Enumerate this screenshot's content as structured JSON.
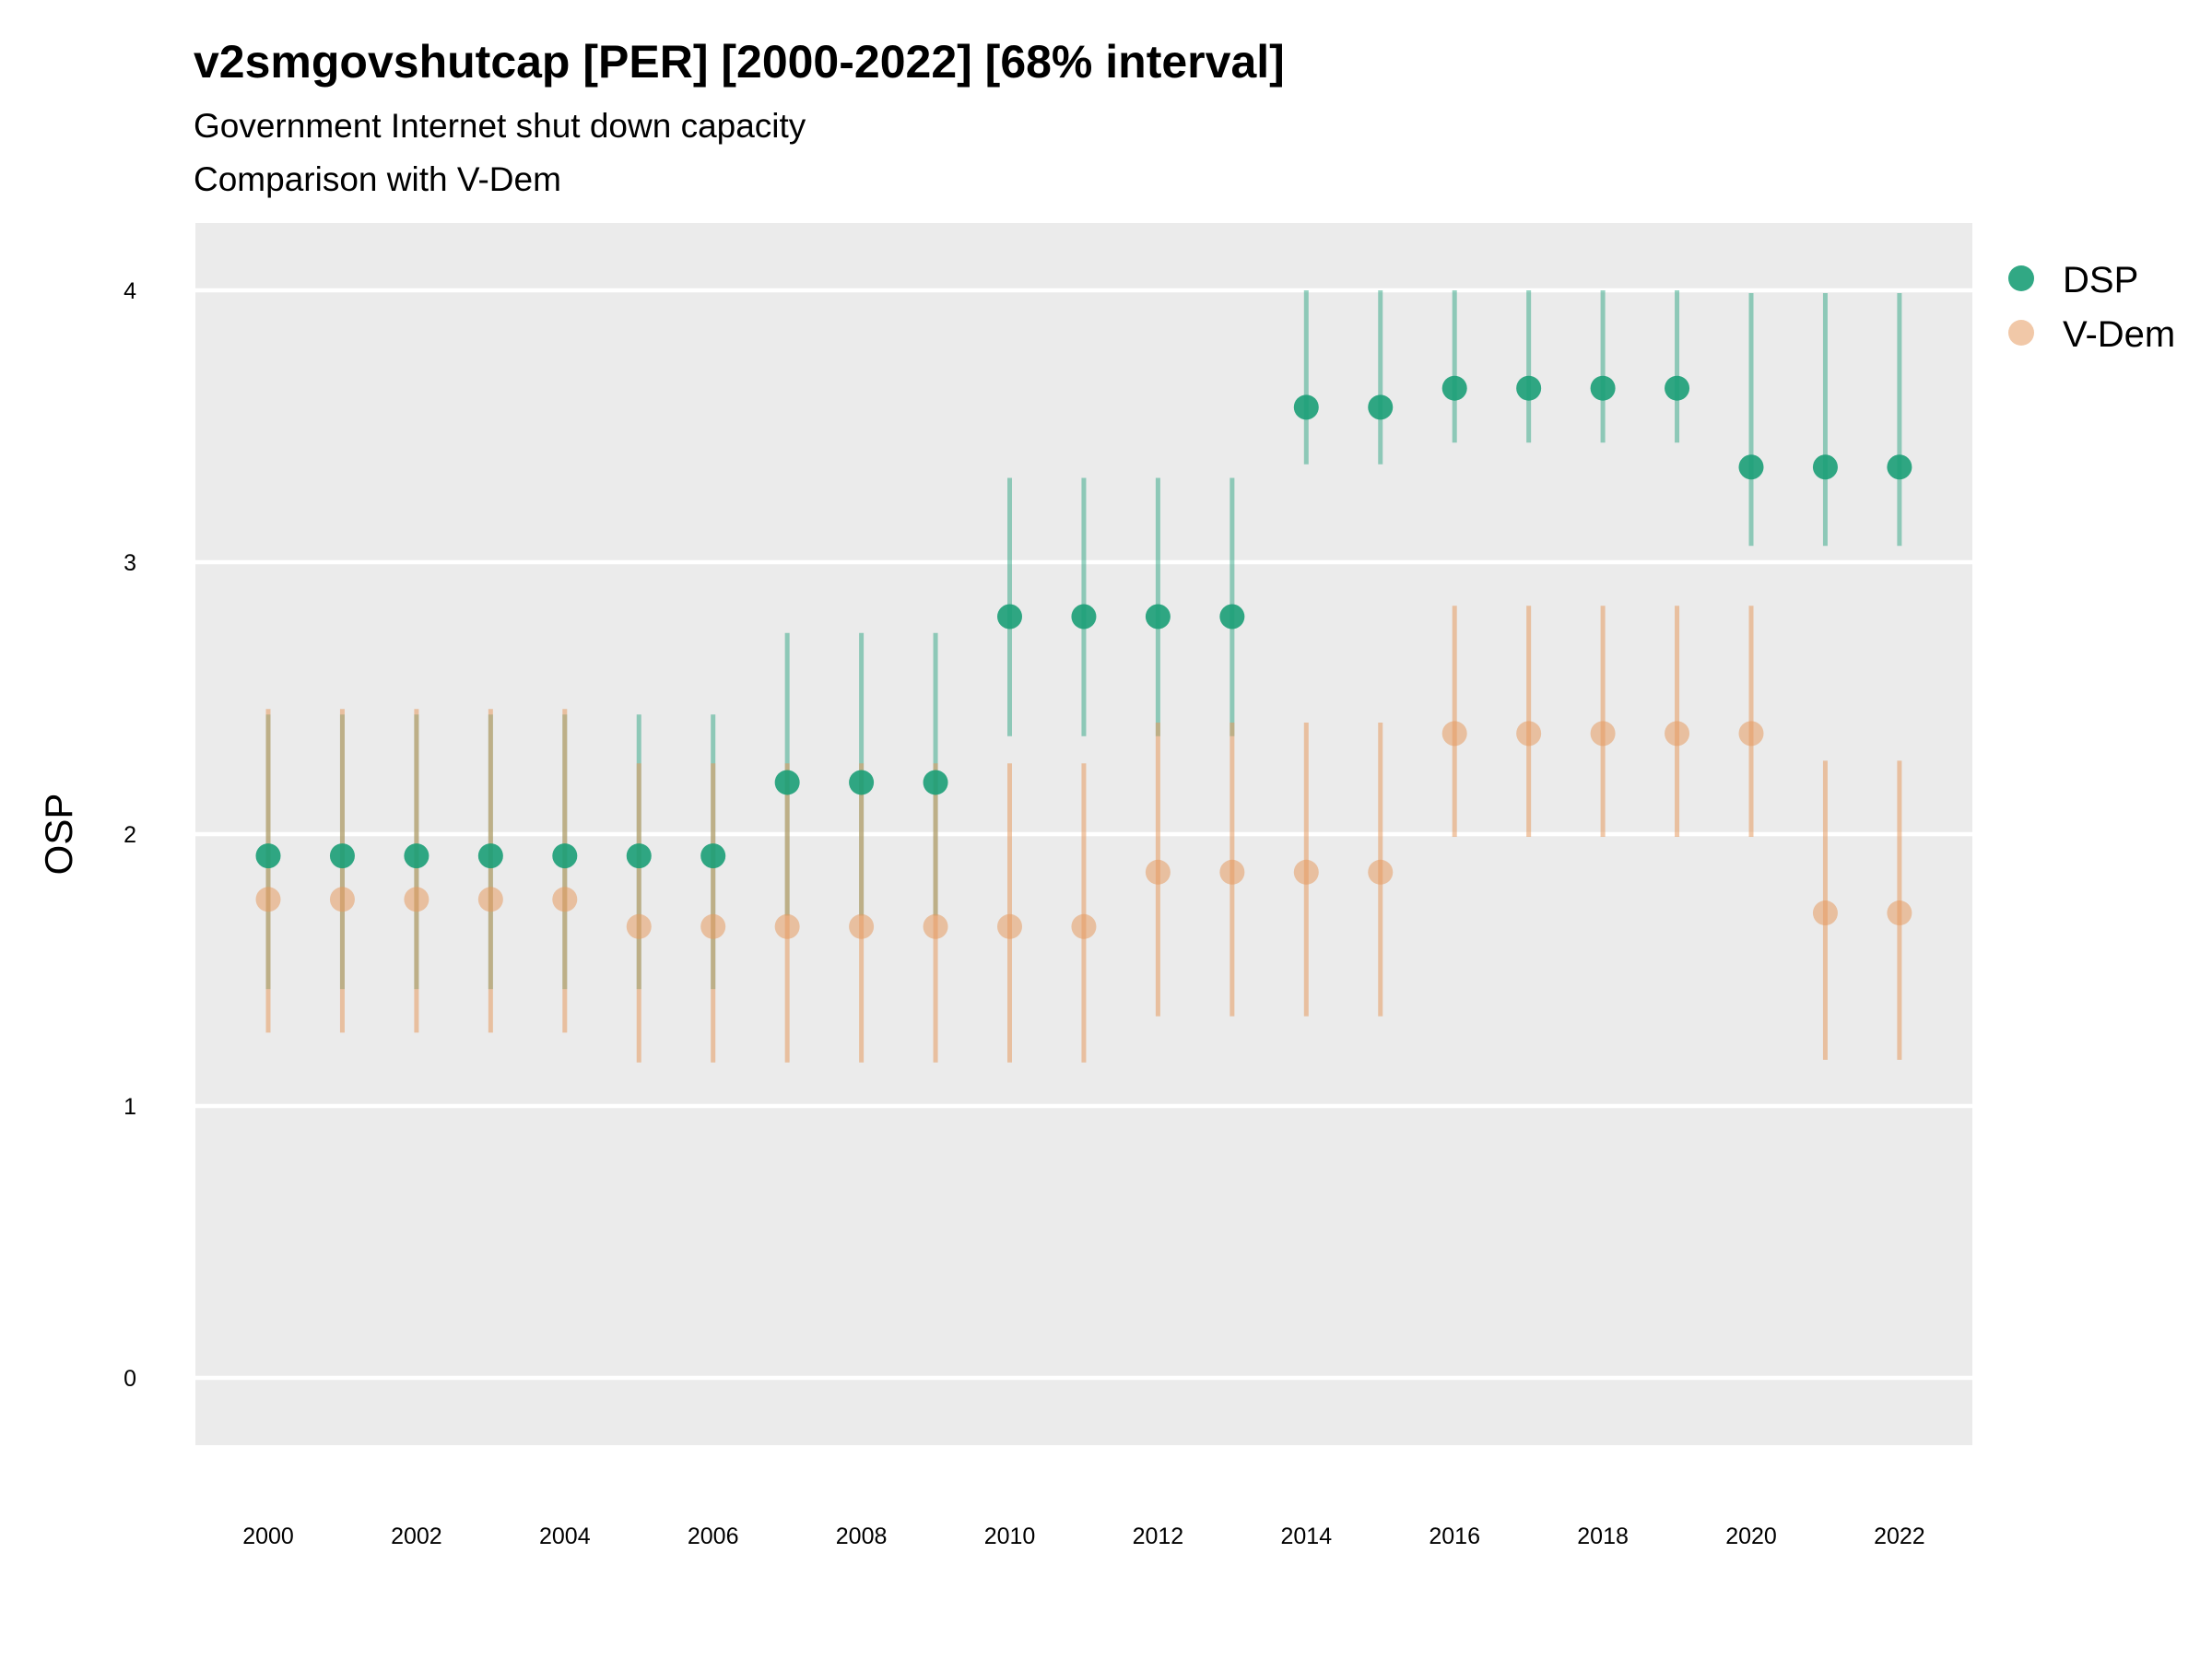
{
  "chart_data": {
    "type": "scatter",
    "title": "v2smgovshutcap [PER] [2000-2022] [68% interval]",
    "subtitle": [
      "Government Internet shut down capacity",
      "Comparison with V-Dem"
    ],
    "xlabel": "",
    "ylabel": "OSP",
    "ylim": [
      -0.25,
      4.25
    ],
    "yticks": [
      0,
      1,
      2,
      3,
      4
    ],
    "xlim": [
      1999,
      2023
    ],
    "xticks": [
      2000,
      2002,
      2004,
      2006,
      2008,
      2010,
      2012,
      2014,
      2016,
      2018,
      2020,
      2022
    ],
    "grid": true,
    "legend_position": "right",
    "colors": {
      "DSP": "#1b9e77",
      "V-Dem": "#e69a61",
      "panel": "#ebebeb",
      "grid": "#ffffff"
    },
    "x": [
      2000,
      2001,
      2002,
      2003,
      2004,
      2005,
      2006,
      2007,
      2008,
      2009,
      2010,
      2011,
      2012,
      2013,
      2014,
      2015,
      2016,
      2017,
      2018,
      2019,
      2020,
      2021,
      2022
    ],
    "series": [
      {
        "name": "DSP",
        "values": [
          1.92,
          1.92,
          1.92,
          1.92,
          1.92,
          1.92,
          1.92,
          2.19,
          2.19,
          2.19,
          2.8,
          2.8,
          2.8,
          2.8,
          3.57,
          3.57,
          3.64,
          3.64,
          3.64,
          3.64,
          3.35,
          3.35,
          3.35
        ],
        "lower": [
          1.43,
          1.43,
          1.43,
          1.43,
          1.43,
          1.43,
          1.43,
          1.7,
          1.7,
          1.7,
          2.36,
          2.36,
          2.36,
          2.36,
          3.36,
          3.36,
          3.44,
          3.44,
          3.44,
          3.44,
          3.06,
          3.06,
          3.06
        ],
        "upper": [
          2.44,
          2.44,
          2.44,
          2.44,
          2.44,
          2.44,
          2.44,
          2.74,
          2.74,
          2.74,
          3.31,
          3.31,
          3.31,
          3.31,
          4.0,
          4.0,
          4.0,
          4.0,
          4.0,
          4.0,
          3.99,
          3.99,
          3.99
        ]
      },
      {
        "name": "V-Dem",
        "values": [
          1.76,
          1.76,
          1.76,
          1.76,
          1.76,
          1.66,
          1.66,
          1.66,
          1.66,
          1.66,
          1.66,
          1.66,
          1.86,
          1.86,
          1.86,
          1.86,
          2.37,
          2.37,
          2.37,
          2.37,
          2.37,
          1.71,
          1.71
        ],
        "lower": [
          1.27,
          1.27,
          1.27,
          1.27,
          1.27,
          1.16,
          1.16,
          1.16,
          1.16,
          1.16,
          1.16,
          1.16,
          1.33,
          1.33,
          1.33,
          1.33,
          1.99,
          1.99,
          1.99,
          1.99,
          1.99,
          1.17,
          1.17
        ],
        "upper": [
          2.46,
          2.46,
          2.46,
          2.46,
          2.46,
          2.26,
          2.26,
          2.26,
          2.26,
          2.26,
          2.26,
          2.26,
          2.41,
          2.41,
          2.41,
          2.41,
          2.84,
          2.84,
          2.84,
          2.84,
          2.84,
          2.27,
          2.27
        ]
      }
    ]
  }
}
